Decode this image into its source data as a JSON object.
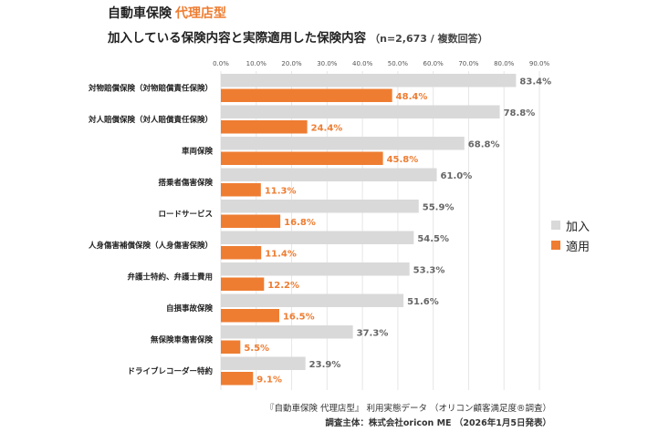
{
  "header": {
    "title": "自動車保険",
    "title_accent": "代理店型",
    "subtitle": "加入している保険内容と実際適用した保険内容",
    "subtitle_note": "（n=2,673 / 複数回答）"
  },
  "footer": {
    "source": "『自動車保険 代理店型』 利用実態データ （オリコン顧客満足度®調査）",
    "surveyor": "調査主体：株式会社oricon ME （2026年1月5日発表）"
  },
  "colors": {
    "enrolled": "#d9d9d9",
    "applied": "#ee7d32",
    "accent_text": "#ee7d32",
    "grid": "#e6e6e6"
  },
  "chart_data": {
    "type": "bar",
    "orientation": "horizontal",
    "title": "加入している保険内容と実際適用した保険内容",
    "categories": [
      "対物賠償保険（対物賠償責任保険）",
      "対人賠償保険（対人賠償責任保険）",
      "車両保険",
      "搭乗者傷害保険",
      "ロードサービス",
      "人身傷害補償保険（人身傷害保険）",
      "弁護士特約、弁護士費用",
      "自損事故保険",
      "無保険車傷害保険",
      "ドライブレコーダー特約"
    ],
    "series": [
      {
        "name": "加入",
        "values": [
          83.4,
          78.8,
          68.8,
          61.0,
          55.9,
          54.5,
          53.3,
          51.6,
          37.3,
          23.9
        ]
      },
      {
        "name": "適用",
        "values": [
          48.4,
          24.4,
          45.8,
          11.3,
          16.8,
          11.4,
          12.2,
          16.5,
          5.5,
          9.1
        ]
      }
    ],
    "xlim": [
      0,
      90
    ],
    "xticks": [
      0,
      10,
      20,
      30,
      40,
      50,
      60,
      70,
      80,
      90
    ],
    "tick_labels": [
      "0.0%",
      "10.0%",
      "20.0%",
      "30.0%",
      "40.0%",
      "50.0%",
      "60.0%",
      "70.0%",
      "80.0%",
      "90.0%"
    ],
    "value_labels": {
      "enrolled": [
        "83.4%",
        "78.8%",
        "68.8%",
        "61.0%",
        "55.9%",
        "54.5%",
        "53.3%",
        "51.6%",
        "37.3%",
        "23.9%"
      ],
      "applied": [
        "48.4%",
        "24.4%",
        "45.8%",
        "11.3%",
        "16.8%",
        "11.4%",
        "12.2%",
        "16.5%",
        "5.5%",
        "9.1%"
      ]
    },
    "grid": true,
    "legend": "right"
  }
}
